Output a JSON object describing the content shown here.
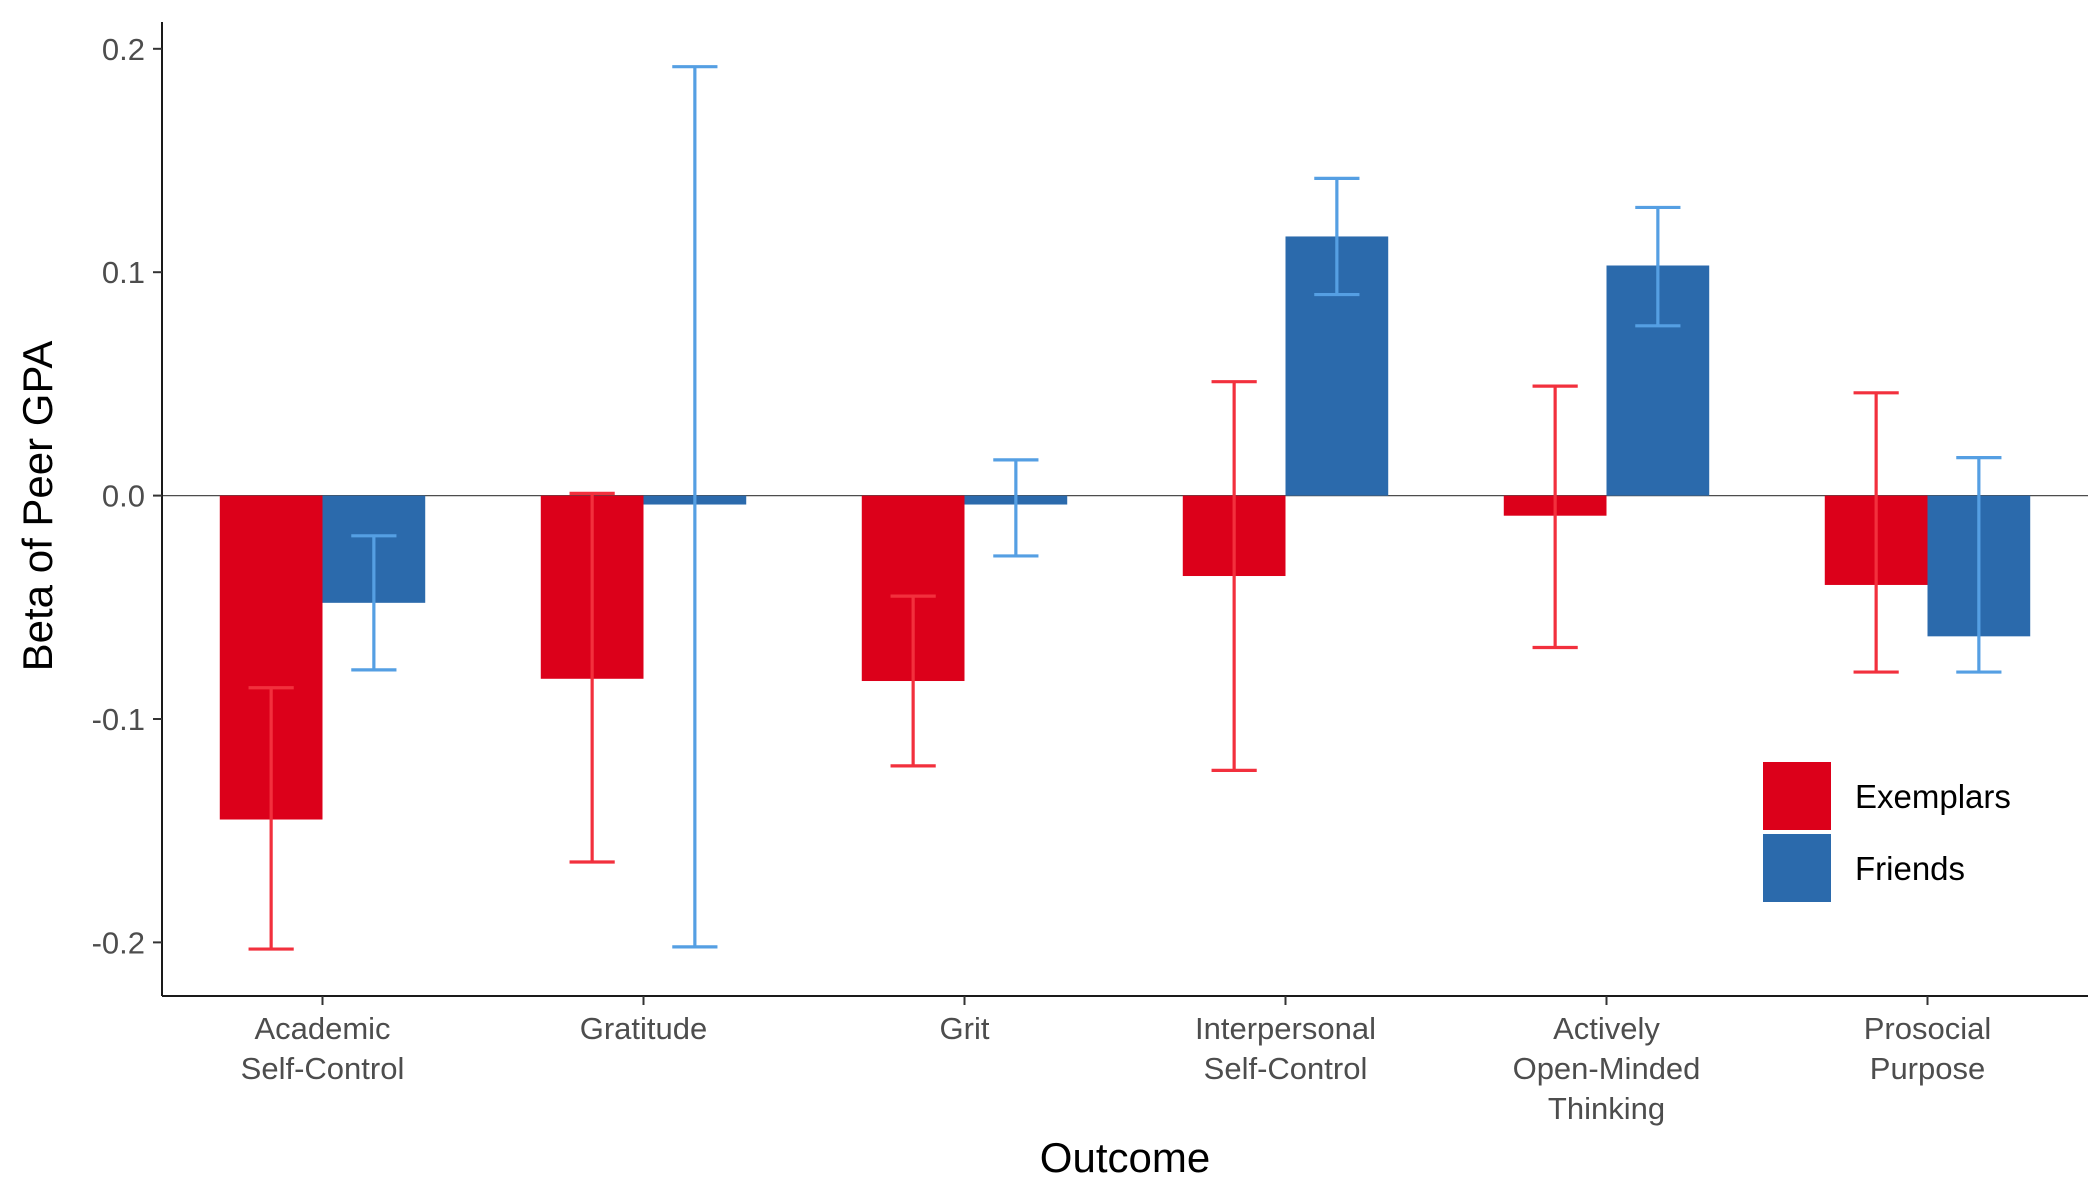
{
  "chart_data": {
    "type": "bar",
    "xlabel": "Outcome",
    "ylabel": "Beta of Peer GPA",
    "ylim": [
      -0.224,
      0.212
    ],
    "yticks": [
      -0.2,
      -0.1,
      0.0,
      0.1,
      0.2
    ],
    "ytick_labels": [
      "-0.2",
      "-0.1",
      "0.0",
      "0.1",
      "0.2"
    ],
    "categories": [
      [
        "Academic",
        "Self-Control"
      ],
      [
        "Gratitude"
      ],
      [
        "Grit"
      ],
      [
        "Interpersonal",
        "Self-Control"
      ],
      [
        "Actively",
        "Open-Minded",
        "Thinking"
      ],
      [
        "Prosocial",
        "Purpose"
      ]
    ],
    "series": [
      {
        "name": "Exemplars",
        "color": "#DC001A",
        "error_color": "#F2303D",
        "values": [
          -0.145,
          -0.082,
          -0.083,
          -0.036,
          -0.009,
          -0.04
        ],
        "ci_low": [
          -0.203,
          -0.164,
          -0.121,
          -0.123,
          -0.068,
          -0.079
        ],
        "ci_high": [
          -0.086,
          0.001,
          -0.045,
          0.051,
          0.049,
          0.046
        ]
      },
      {
        "name": "Friends",
        "color": "#2B6AAC",
        "error_color": "#559FE3",
        "values": [
          -0.048,
          -0.004,
          -0.004,
          0.116,
          0.103,
          -0.063
        ],
        "ci_low": [
          -0.078,
          -0.202,
          -0.027,
          0.09,
          0.076,
          -0.079
        ],
        "ci_high": [
          -0.018,
          0.192,
          0.016,
          0.142,
          0.129,
          0.017
        ]
      }
    ],
    "reference_line": 0,
    "legend_position": "bottom-right",
    "grid": false
  }
}
